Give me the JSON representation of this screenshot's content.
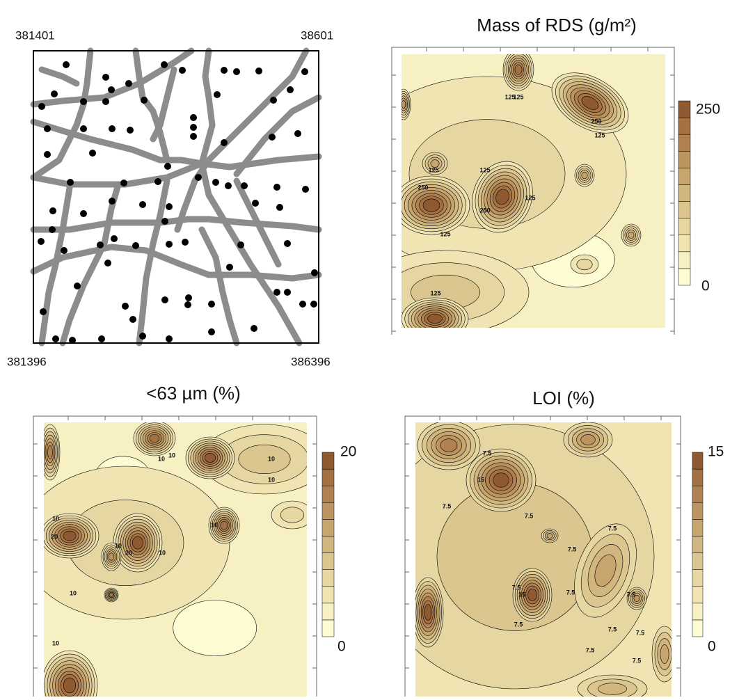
{
  "site_map": {
    "corners": {
      "top_left": "381401",
      "top_right": "38601",
      "bottom_left": "381396",
      "bottom_right": "386396"
    }
  },
  "panels": [
    {
      "title": "Mass of RDS (g/m²)",
      "colorbar_max": "250",
      "colorbar_min": "0",
      "contour_labels": [
        "125",
        "125",
        "125",
        "125",
        "250",
        "125",
        "125",
        "125",
        "250",
        "250",
        "125"
      ]
    },
    {
      "title": "<63 µm (%)",
      "colorbar_max": "20",
      "colorbar_min": "0",
      "contour_labels": [
        "10",
        "10",
        "10",
        "10",
        "10",
        "20",
        "10",
        "20",
        "10",
        "10",
        "10",
        "10"
      ]
    },
    {
      "title": "LOI (%)",
      "colorbar_max": "15",
      "colorbar_min": "0",
      "contour_labels": [
        "7.5",
        "15",
        "7.5",
        "7.5",
        "7.5",
        "7.5",
        "7.5",
        "7.5",
        "7.5",
        "15",
        "7.5",
        "7.5",
        "7.5",
        "7.5",
        "7.5"
      ]
    }
  ]
}
